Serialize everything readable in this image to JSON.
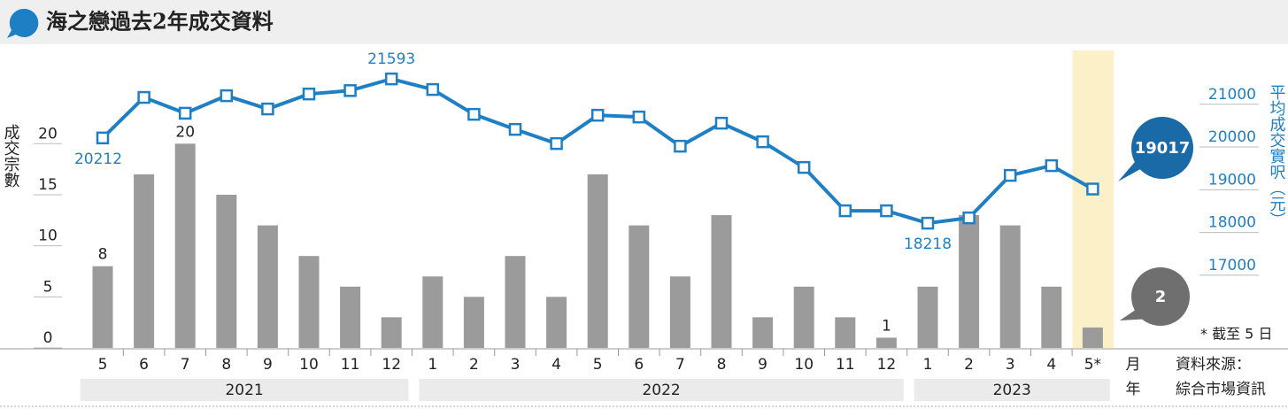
{
  "chart_data": {
    "type": "bar",
    "title": "海之戀過去2年成交資料",
    "y_label": "成交宗數",
    "y2_label": "平均成交實呎（元）",
    "x_label": "月",
    "x_group_label": "年",
    "categories": [
      "5",
      "6",
      "7",
      "8",
      "9",
      "10",
      "11",
      "12",
      "1",
      "2",
      "3",
      "4",
      "5",
      "6",
      "7",
      "8",
      "9",
      "10",
      "11",
      "12",
      "1",
      "2",
      "3",
      "4",
      "5*"
    ],
    "years": [
      "2021",
      "2022",
      "2023"
    ],
    "series": [
      {
        "type": "bar",
        "color": "#9b9b9b",
        "values": [
          8,
          17,
          20,
          15,
          12,
          9,
          6,
          3,
          7,
          5,
          9,
          5,
          17,
          12,
          7,
          13,
          3,
          6,
          3,
          1,
          6,
          13,
          12,
          6,
          2
        ]
      },
      {
        "type": "line",
        "axis": "y2",
        "color": "#1f7fc4",
        "values": [
          20212,
          21160,
          20790,
          21200,
          20890,
          21240,
          21320,
          21593,
          21345,
          20764,
          20412,
          20081,
          20743,
          20702,
          20019,
          20557,
          20122,
          19522,
          18508,
          18508,
          18218,
          18342,
          19336,
          19564,
          19017
        ]
      }
    ],
    "ylim": [
      0,
      29.3
    ],
    "yticks": [
      0,
      5,
      10,
      15,
      20
    ],
    "y2lim": [
      15300,
      22300
    ],
    "y2ticks": [
      17000,
      18000,
      19000,
      20000,
      21000
    ],
    "highlight_color": "#fbf0c8",
    "note": "* 截至 5 日",
    "source_label": "資料來源：",
    "source": "綜合市場資訊"
  }
}
